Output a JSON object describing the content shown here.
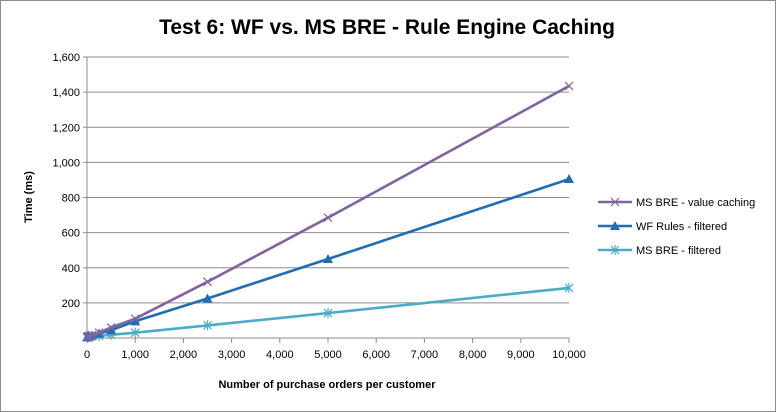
{
  "chart_data": {
    "type": "line",
    "title": "Test 6: WF vs. MS BRE - Rule Engine Caching",
    "xlabel": "Number of purchase orders per customer",
    "ylabel": "Time (ms)",
    "xlim": [
      0,
      10000
    ],
    "ylim": [
      0,
      1600
    ],
    "x_ticks": [
      0,
      1000,
      2000,
      3000,
      4000,
      5000,
      6000,
      7000,
      8000,
      9000,
      10000
    ],
    "x_tick_labels": [
      "0",
      "1,000",
      "2,000",
      "3,000",
      "4,000",
      "5,000",
      "6,000",
      "7,000",
      "8,000",
      "9,000",
      "10,000"
    ],
    "y_ticks": [
      200,
      400,
      600,
      800,
      1000,
      1200,
      1400,
      1600
    ],
    "y_tick_labels": [
      "200",
      "400",
      "600",
      "800",
      "1,000",
      "1,200",
      "1,400",
      "1,600"
    ],
    "grid": true,
    "legend_position": "right",
    "series": [
      {
        "name": "MS BRE - value caching",
        "color": "#8064a2",
        "marker": "x",
        "x": [
          1,
          10,
          25,
          50,
          100,
          250,
          500,
          1000,
          2500,
          5000,
          10000
        ],
        "y": [
          5,
          8,
          10,
          12,
          16,
          30,
          60,
          110,
          320,
          685,
          1435
        ]
      },
      {
        "name": "WF Rules - filtered",
        "color": "#1f6db5",
        "marker": "triangle",
        "x": [
          1,
          10,
          25,
          50,
          100,
          250,
          500,
          1000,
          2500,
          5000,
          10000
        ],
        "y": [
          4,
          6,
          7,
          10,
          14,
          25,
          45,
          95,
          225,
          450,
          905
        ]
      },
      {
        "name": "MS BRE - filtered",
        "color": "#4bacc6",
        "marker": "asterisk",
        "x": [
          1,
          10,
          25,
          50,
          100,
          250,
          500,
          1000,
          2500,
          5000,
          10000
        ],
        "y": [
          3,
          4,
          5,
          7,
          9,
          12,
          18,
          30,
          72,
          142,
          285
        ]
      }
    ]
  }
}
